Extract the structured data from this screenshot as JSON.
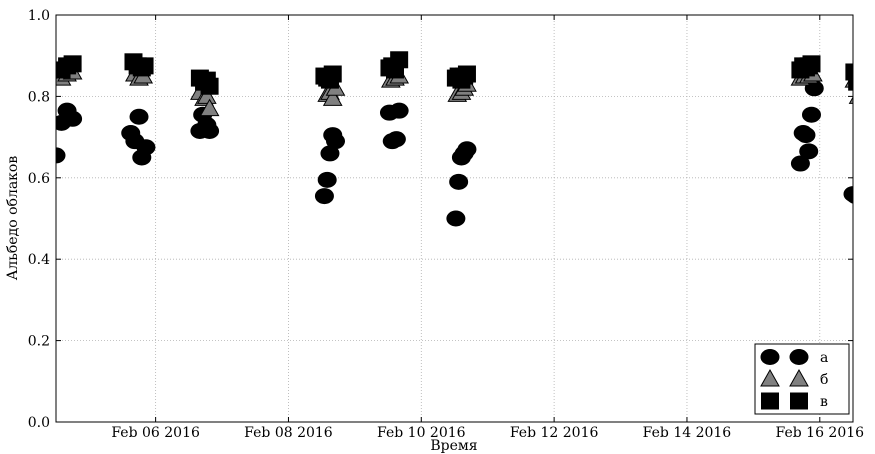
{
  "chart_data": {
    "type": "scatter",
    "xlabel": "Время",
    "ylabel": "Альбедо облаков",
    "xlim": [
      "2016-02-04 12:00",
      "2016-02-16 12:00"
    ],
    "ylim": [
      0.0,
      1.0
    ],
    "grid": true,
    "legend_position": "bottom-right",
    "x_tick_labels": [
      "Feb 06 2016",
      "Feb 08 2016",
      "Feb 10 2016",
      "Feb 12 2016",
      "Feb 14 2016",
      "Feb 16 2016"
    ],
    "y_tick_labels": [
      "0.0",
      "0.2",
      "0.4",
      "0.6",
      "0.8",
      "1.0"
    ],
    "series": [
      {
        "name": "а",
        "marker": "circle",
        "color": "#000000",
        "points": [
          {
            "x": "2016-02-04 12:00",
            "y": 0.655
          },
          {
            "x": "2016-02-04 14:00",
            "y": 0.735
          },
          {
            "x": "2016-02-04 16:00",
            "y": 0.765
          },
          {
            "x": "2016-02-04 18:00",
            "y": 0.745
          },
          {
            "x": "2016-02-05 15:00",
            "y": 0.71
          },
          {
            "x": "2016-02-05 16:30",
            "y": 0.69
          },
          {
            "x": "2016-02-05 18:00",
            "y": 0.75
          },
          {
            "x": "2016-02-05 19:00",
            "y": 0.65
          },
          {
            "x": "2016-02-05 20:30",
            "y": 0.675
          },
          {
            "x": "2016-02-06 16:00",
            "y": 0.715
          },
          {
            "x": "2016-02-06 17:00",
            "y": 0.755
          },
          {
            "x": "2016-02-06 18:30",
            "y": 0.73
          },
          {
            "x": "2016-02-06 19:30",
            "y": 0.715
          },
          {
            "x": "2016-02-08 13:00",
            "y": 0.555
          },
          {
            "x": "2016-02-08 14:00",
            "y": 0.595
          },
          {
            "x": "2016-02-08 15:00",
            "y": 0.66
          },
          {
            "x": "2016-02-08 16:00",
            "y": 0.705
          },
          {
            "x": "2016-02-08 17:00",
            "y": 0.69
          },
          {
            "x": "2016-02-09 12:30",
            "y": 0.76
          },
          {
            "x": "2016-02-09 13:30",
            "y": 0.69
          },
          {
            "x": "2016-02-09 15:00",
            "y": 0.695
          },
          {
            "x": "2016-02-09 16:00",
            "y": 0.765
          },
          {
            "x": "2016-02-10 12:30",
            "y": 0.5
          },
          {
            "x": "2016-02-10 13:30",
            "y": 0.59
          },
          {
            "x": "2016-02-10 14:30",
            "y": 0.65
          },
          {
            "x": "2016-02-10 15:30",
            "y": 0.66
          },
          {
            "x": "2016-02-10 16:30",
            "y": 0.67
          },
          {
            "x": "2016-02-15 17:00",
            "y": 0.635
          },
          {
            "x": "2016-02-15 18:00",
            "y": 0.71
          },
          {
            "x": "2016-02-15 19:00",
            "y": 0.705
          },
          {
            "x": "2016-02-15 20:00",
            "y": 0.665
          },
          {
            "x": "2016-02-15 21:00",
            "y": 0.755
          },
          {
            "x": "2016-02-15 22:00",
            "y": 0.82
          },
          {
            "x": "2016-02-16 12:00",
            "y": 0.56
          },
          {
            "x": "2016-02-16 13:00",
            "y": 0.555
          }
        ]
      },
      {
        "name": "б",
        "marker": "triangle",
        "color": "#808080",
        "points": [
          {
            "x": "2016-02-04 14:00",
            "y": 0.845
          },
          {
            "x": "2016-02-04 16:00",
            "y": 0.855
          },
          {
            "x": "2016-02-04 18:00",
            "y": 0.86
          },
          {
            "x": "2016-02-05 16:30",
            "y": 0.855
          },
          {
            "x": "2016-02-05 18:00",
            "y": 0.845
          },
          {
            "x": "2016-02-05 19:30",
            "y": 0.85
          },
          {
            "x": "2016-02-06 16:00",
            "y": 0.81
          },
          {
            "x": "2016-02-06 17:30",
            "y": 0.795
          },
          {
            "x": "2016-02-06 18:30",
            "y": 0.8
          },
          {
            "x": "2016-02-06 19:30",
            "y": 0.77
          },
          {
            "x": "2016-02-08 14:00",
            "y": 0.805
          },
          {
            "x": "2016-02-08 15:00",
            "y": 0.81
          },
          {
            "x": "2016-02-08 16:00",
            "y": 0.795
          },
          {
            "x": "2016-02-08 17:00",
            "y": 0.82
          },
          {
            "x": "2016-02-09 13:00",
            "y": 0.84
          },
          {
            "x": "2016-02-09 14:30",
            "y": 0.845
          },
          {
            "x": "2016-02-09 16:00",
            "y": 0.85
          },
          {
            "x": "2016-02-10 13:00",
            "y": 0.805
          },
          {
            "x": "2016-02-10 14:30",
            "y": 0.81
          },
          {
            "x": "2016-02-10 15:30",
            "y": 0.82
          },
          {
            "x": "2016-02-10 16:30",
            "y": 0.83
          },
          {
            "x": "2016-02-15 17:00",
            "y": 0.845
          },
          {
            "x": "2016-02-15 18:30",
            "y": 0.85
          },
          {
            "x": "2016-02-15 20:00",
            "y": 0.85
          },
          {
            "x": "2016-02-15 21:30",
            "y": 0.855
          },
          {
            "x": "2016-02-16 12:30",
            "y": 0.84
          },
          {
            "x": "2016-02-16 14:00",
            "y": 0.8
          }
        ]
      },
      {
        "name": "в",
        "marker": "square",
        "color": "#000000",
        "points": [
          {
            "x": "2016-02-04 14:00",
            "y": 0.865
          },
          {
            "x": "2016-02-04 16:00",
            "y": 0.875
          },
          {
            "x": "2016-02-04 18:00",
            "y": 0.88
          },
          {
            "x": "2016-02-05 16:00",
            "y": 0.885
          },
          {
            "x": "2016-02-05 17:30",
            "y": 0.875
          },
          {
            "x": "2016-02-05 19:00",
            "y": 0.87
          },
          {
            "x": "2016-02-05 20:00",
            "y": 0.875
          },
          {
            "x": "2016-02-06 16:00",
            "y": 0.845
          },
          {
            "x": "2016-02-06 17:30",
            "y": 0.835
          },
          {
            "x": "2016-02-06 18:30",
            "y": 0.84
          },
          {
            "x": "2016-02-06 19:30",
            "y": 0.825
          },
          {
            "x": "2016-02-08 13:00",
            "y": 0.85
          },
          {
            "x": "2016-02-08 14:00",
            "y": 0.845
          },
          {
            "x": "2016-02-08 15:00",
            "y": 0.84
          },
          {
            "x": "2016-02-08 16:00",
            "y": 0.855
          },
          {
            "x": "2016-02-09 12:30",
            "y": 0.87
          },
          {
            "x": "2016-02-09 13:30",
            "y": 0.875
          },
          {
            "x": "2016-02-09 14:30",
            "y": 0.865
          },
          {
            "x": "2016-02-09 16:00",
            "y": 0.89
          },
          {
            "x": "2016-02-10 12:30",
            "y": 0.845
          },
          {
            "x": "2016-02-10 13:30",
            "y": 0.85
          },
          {
            "x": "2016-02-10 14:30",
            "y": 0.84
          },
          {
            "x": "2016-02-10 15:30",
            "y": 0.85
          },
          {
            "x": "2016-02-10 16:30",
            "y": 0.855
          },
          {
            "x": "2016-02-15 17:00",
            "y": 0.865
          },
          {
            "x": "2016-02-15 18:00",
            "y": 0.875
          },
          {
            "x": "2016-02-15 19:00",
            "y": 0.87
          },
          {
            "x": "2016-02-15 20:00",
            "y": 0.875
          },
          {
            "x": "2016-02-15 21:00",
            "y": 0.88
          },
          {
            "x": "2016-02-16 12:30",
            "y": 0.86
          },
          {
            "x": "2016-02-16 13:30",
            "y": 0.835
          }
        ]
      }
    ]
  }
}
